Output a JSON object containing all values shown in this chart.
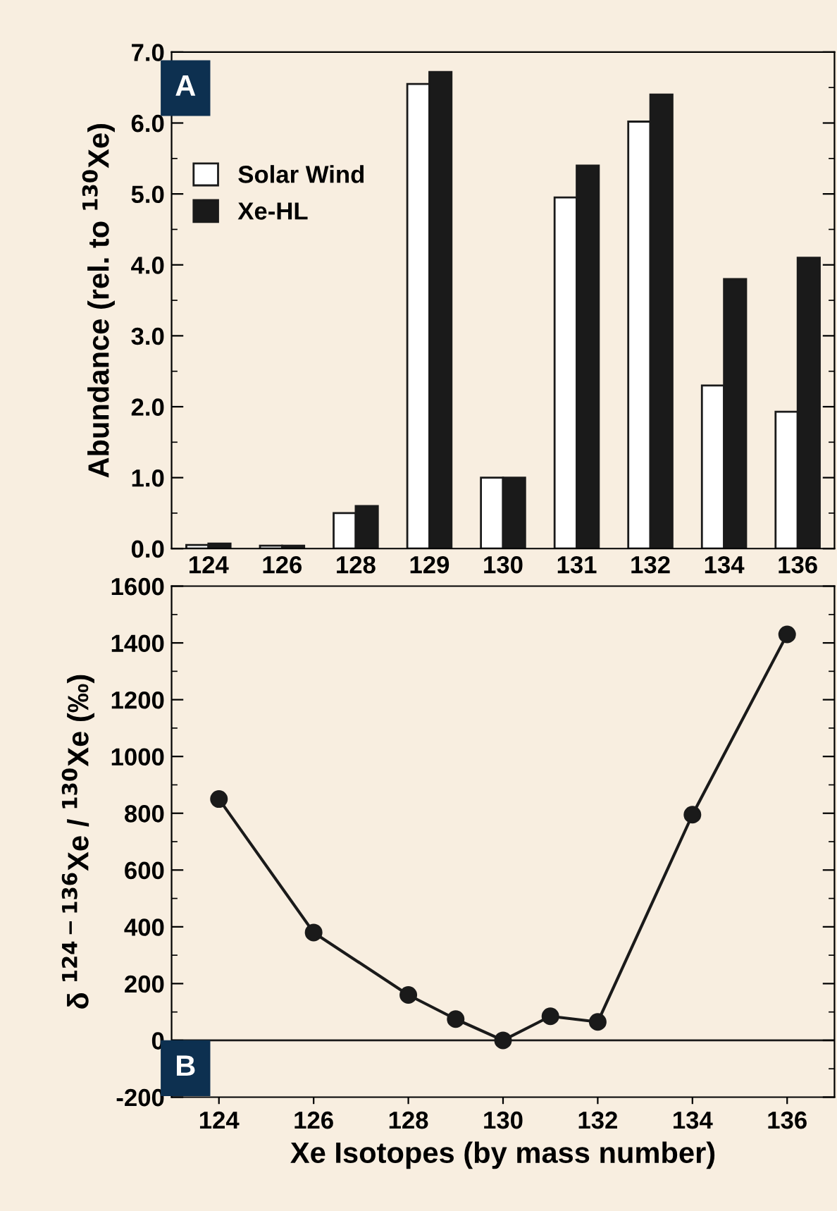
{
  "chart_data": [
    {
      "type": "bar",
      "ylabel": "Abundance (rel. to $^{130}$Xe)",
      "annotations": [
        "A"
      ],
      "categories": [
        "124",
        "126",
        "128",
        "129",
        "130",
        "131",
        "132",
        "134",
        "136"
      ],
      "series": [
        {
          "name": "Solar Wind",
          "color": "#ffffff",
          "values": [
            0.05,
            0.04,
            0.5,
            6.55,
            1.0,
            4.95,
            6.02,
            2.3,
            1.93
          ]
        },
        {
          "name": "Xe-HL",
          "color": "#1a1a1a",
          "values": [
            0.07,
            0.04,
            0.6,
            6.72,
            1.0,
            5.4,
            6.4,
            3.8,
            4.1
          ]
        }
      ],
      "ylim": [
        0,
        7
      ],
      "yticks": [
        {
          "value": 0,
          "label": "0.0"
        },
        {
          "value": 1,
          "label": "1.0"
        },
        {
          "value": 2,
          "label": "2.0"
        },
        {
          "value": 3,
          "label": "3.0"
        },
        {
          "value": 4,
          "label": "4.0"
        },
        {
          "value": 5,
          "label": "5.0"
        },
        {
          "value": 6,
          "label": "6.0"
        },
        {
          "value": 7,
          "label": "7.0"
        }
      ],
      "legend": "top left",
      "grid": false
    },
    {
      "type": "line",
      "xlabel": "Xe Isotopes (by mass number)",
      "ylabel": "δ $^{124−136}$Xe / $^{130}$Xe (‰)",
      "annotations": [
        "B"
      ],
      "x": [
        124,
        126,
        128,
        129,
        130,
        131,
        132,
        134,
        136
      ],
      "series": [
        {
          "color": "#1a1a1a",
          "values": [
            850,
            380,
            160,
            75,
            0,
            85,
            65,
            795,
            1430
          ]
        }
      ],
      "xlim": [
        123,
        137
      ],
      "xticks": [
        124,
        126,
        128,
        130,
        132,
        134,
        136
      ],
      "ylim": [
        -200,
        1600
      ],
      "yticks": [
        -200,
        0,
        200,
        400,
        600,
        800,
        1000,
        1200,
        1400,
        1600
      ],
      "ref_lines": [
        {
          "axis": "y",
          "value": 0,
          "color": "#1a1a1a"
        }
      ],
      "marker": "circle",
      "line_style": "solid",
      "grid": false
    }
  ]
}
